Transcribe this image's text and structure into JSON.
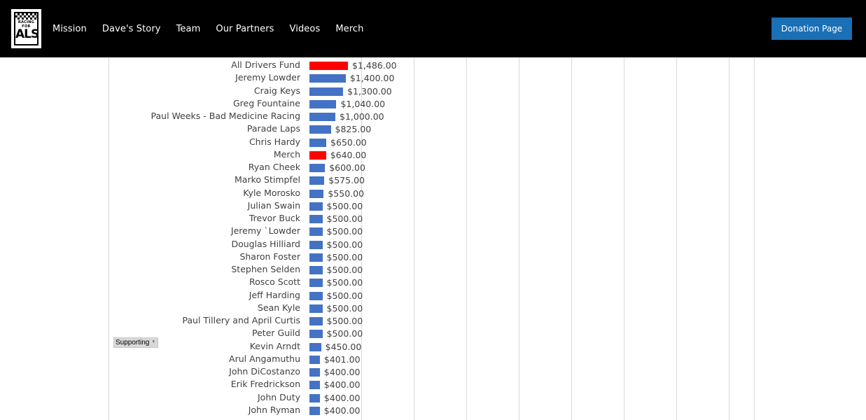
{
  "header": {
    "logo_top": "RACING FOR",
    "logo_main": "ALS",
    "nav": [
      "Mission",
      "Dave's Story",
      "Team",
      "Our Partners",
      "Videos",
      "Merch"
    ],
    "donate_label": "Donation Page"
  },
  "filter": {
    "label": "Supporting",
    "arrow": "▾"
  },
  "colors": {
    "bar_blue": "#4472c4",
    "bar_red": "#ff0000",
    "header_bg": "#000000",
    "button": "#1a6fb5"
  },
  "chart_data": {
    "type": "bar",
    "orientation": "horizontal",
    "categories": [
      "All Drivers Fund",
      "Jeremy Lowder",
      "Craig Keys",
      "Greg Fountaine",
      "Paul Weeks - Bad Medicine Racing",
      "Parade Laps",
      "Chris Hardy",
      "Merch",
      "Ryan Cheek",
      "Marko Stimpfel",
      "Kyle Morosko",
      "Julian Swain",
      "Trevor Buck",
      "Jeremy `Lowder",
      "Douglas Hilliard",
      "Sharon Foster",
      "Stephen Selden",
      "Rosco Scott",
      "Jeff Harding",
      "Sean Kyle",
      "Paul Tillery and April Curtis",
      "Peter Guild",
      "Kevin Arndt",
      "Arul Angamuthu",
      "John DiCostanzo",
      "Erik Fredrickson",
      "John Duty",
      "John Ryman"
    ],
    "values": [
      1486,
      1400,
      1300,
      1040,
      1000,
      825,
      650,
      640,
      600,
      575,
      550,
      500,
      500,
      500,
      500,
      500,
      500,
      500,
      500,
      500,
      500,
      500,
      450,
      401,
      400,
      400,
      400,
      400
    ],
    "labels": [
      "$1,486.00",
      "$1,400.00",
      "$1,300.00",
      "$1,040.00",
      "$1,000.00",
      "$825.00",
      "$650.00",
      "$640.00",
      "$600.00",
      "$575.00",
      "$550.00",
      "$500.00",
      "$500.00",
      "$500.00",
      "$500.00",
      "$500.00",
      "$500.00",
      "$500.00",
      "$500.00",
      "$500.00",
      "$500.00",
      "$500.00",
      "$450.00",
      "$401.00",
      "$400.00",
      "$400.00",
      "$400.00",
      "$400.00"
    ],
    "highlighted": [
      "All Drivers Fund",
      "Merch"
    ],
    "grid": true
  }
}
